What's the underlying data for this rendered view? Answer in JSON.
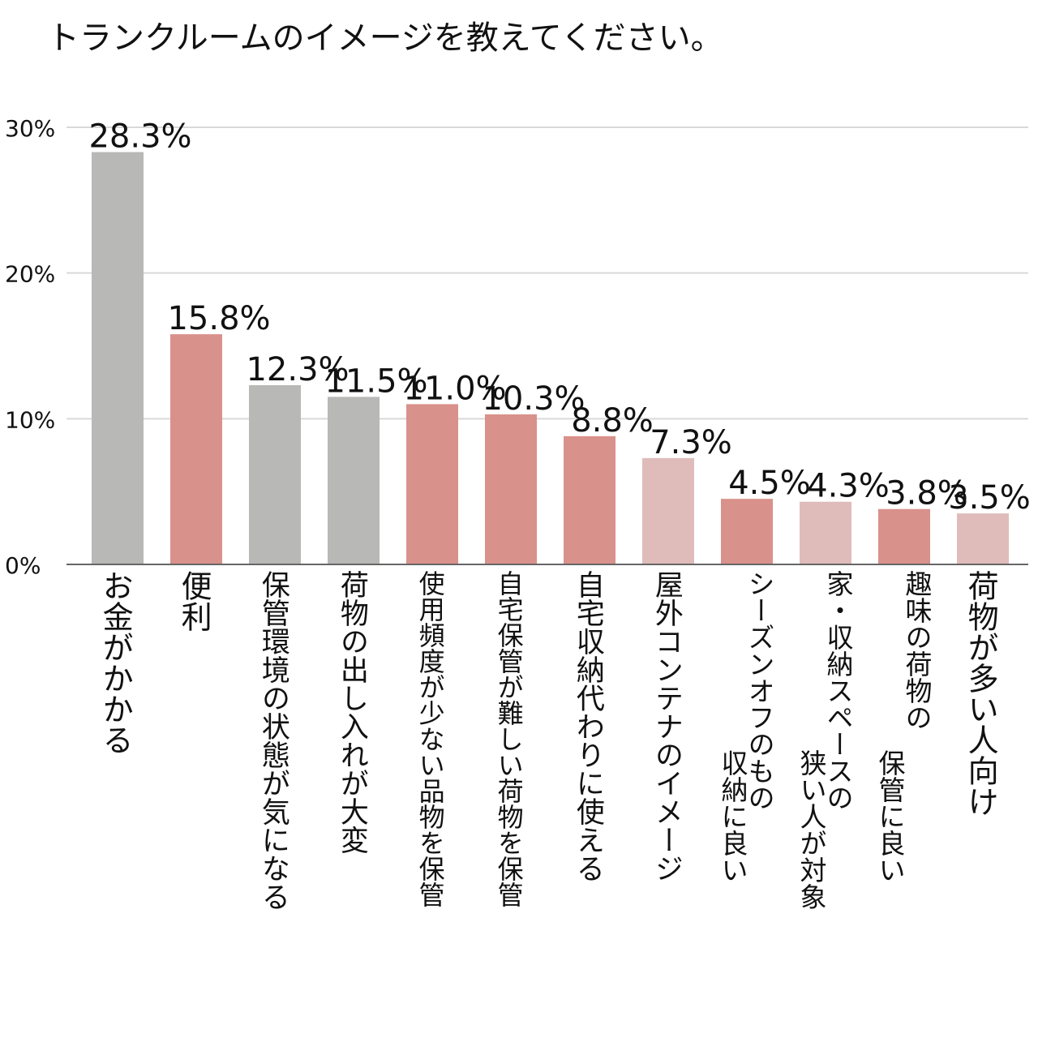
{
  "chart_data": {
    "type": "bar",
    "title": "トランクルームのイメージを教えてください。",
    "xlabel": "",
    "ylabel": "",
    "ylim": [
      0,
      30
    ],
    "yticks": [
      0,
      10,
      20,
      30
    ],
    "ytick_labels": [
      "0%",
      "10%",
      "20%",
      "30%"
    ],
    "grid": true,
    "categories": [
      "お金がかかる",
      "便利",
      "保管環境の状態が気になる",
      "荷物の出し入れが大変",
      "使用頻度が少ない品物を保管",
      "自宅保管が難しい荷物を保管",
      "自宅収納代わりに使える",
      "屋外コンテナのイメージ",
      "シーズンオフのもの 収納に良い",
      "家・収納スペースの 狭い人が対象",
      "趣味の荷物の 保管に良い",
      "荷物が多い人向け"
    ],
    "values": [
      28.3,
      15.8,
      12.3,
      11.5,
      11.0,
      10.3,
      8.8,
      7.3,
      4.5,
      4.3,
      3.8,
      3.5
    ],
    "value_labels": [
      "28.3%",
      "15.8%",
      "12.3%",
      "11.5%",
      "11.0%",
      "10.3%",
      "8.8%",
      "7.3%",
      "4.5%",
      "4.3%",
      "3.8%",
      "3.5%"
    ],
    "colors": [
      "#b8b8b6",
      "#d9918b",
      "#b8b8b6",
      "#b8b8b6",
      "#d9918b",
      "#d9918b",
      "#d9918b",
      "#dfbcba",
      "#d9918b",
      "#dfbcba",
      "#d9918b",
      "#dfbcba"
    ]
  },
  "colors": {
    "grid": "#d9d9d9",
    "axis": "#666666",
    "text": "#111111"
  }
}
